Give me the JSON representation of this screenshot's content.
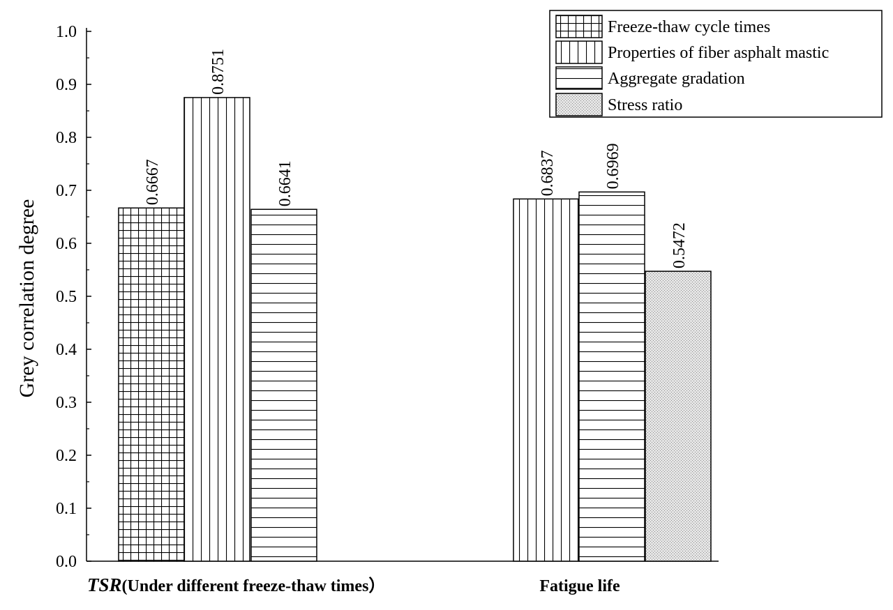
{
  "chart_data": {
    "type": "bar",
    "ylabel": "Grey correlation degree",
    "xlabel": "",
    "ylim": [
      0,
      1.0
    ],
    "yticks": [
      "0.0",
      "0.1",
      "0.2",
      "0.3",
      "0.4",
      "0.5",
      "0.6",
      "0.7",
      "0.8",
      "0.9",
      "1.0"
    ],
    "categories": [
      {
        "prefix": "TSR",
        "rest": "(Under different freeze-thaw times）"
      },
      {
        "prefix": "",
        "rest": "Fatigue life"
      }
    ],
    "series": [
      {
        "name": "Freeze-thaw cycle times",
        "pattern": "grid",
        "values": [
          0.6667,
          null
        ]
      },
      {
        "name": "Properties of fiber asphalt mastic",
        "pattern": "vertical",
        "values": [
          0.8751,
          0.6837
        ]
      },
      {
        "name": "Aggregate gradation",
        "pattern": "horizontal",
        "values": [
          0.6641,
          0.6969
        ]
      },
      {
        "name": "Stress ratio",
        "pattern": "dots",
        "values": [
          null,
          0.5472
        ]
      }
    ],
    "data_labels": [
      [
        "0.6667",
        null
      ],
      [
        "0.8751",
        "0.6837"
      ],
      [
        "0.6641",
        "0.6969"
      ],
      [
        null,
        "0.5472"
      ]
    ],
    "legend_position": "top-right",
    "grid": false
  }
}
